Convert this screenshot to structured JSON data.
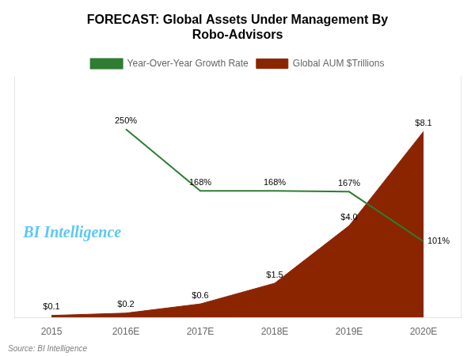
{
  "chart_data": {
    "type": "line",
    "title": "FORECAST: Global Assets Under Management By\nRobo-Advisors",
    "categories": [
      "2015",
      "2016E",
      "2017E",
      "2018E",
      "2019E",
      "2020E"
    ],
    "series": [
      {
        "name": "Global AUM $Trillions",
        "type": "area",
        "color": "#8B2500",
        "values": [
          0.1,
          0.2,
          0.6,
          1.5,
          4.0,
          8.1
        ],
        "value_labels": [
          "$0.1",
          "$0.2",
          "$0.6",
          "$1.5",
          "$4.0",
          "$8.1"
        ]
      },
      {
        "name": "Year-Over-Year Growth Rate",
        "type": "line",
        "color": "#2E7D32",
        "axis": "y2",
        "values": [
          null,
          250,
          168,
          168,
          167,
          101
        ],
        "value_labels": [
          null,
          "250%",
          "168%",
          "168%",
          "167%",
          "101%"
        ]
      }
    ],
    "ylim": [
      0,
      10.5
    ],
    "y2lim": [
      0,
      320
    ],
    "tick_labels": "x",
    "grid": false,
    "legend": "top",
    "data_labels": true,
    "annotations": [
      {
        "text": "BI Intelligence",
        "color": "#5BC8F5"
      }
    ],
    "source": "Source: BI Intelligence"
  }
}
